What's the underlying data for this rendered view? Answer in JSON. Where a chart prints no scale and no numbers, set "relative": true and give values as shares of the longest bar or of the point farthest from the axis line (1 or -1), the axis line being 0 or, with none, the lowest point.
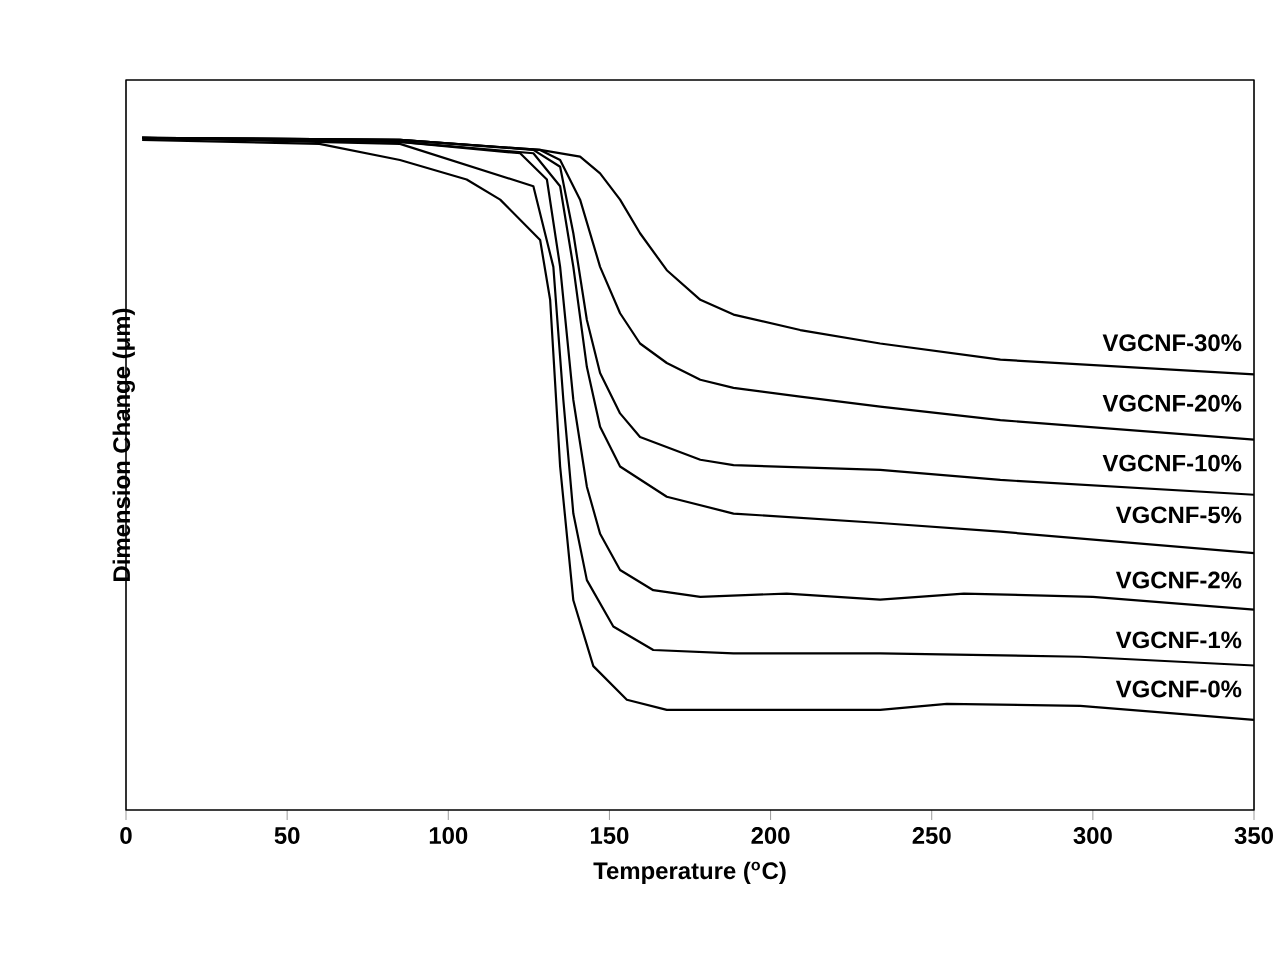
{
  "chart_data": {
    "type": "line",
    "xlabel": "Temperature ($^{o}$C)",
    "ylabel": "Dimension Change (μm)",
    "relative": true,
    "xlim": [
      0,
      350
    ],
    "xticks": [
      0,
      50,
      100,
      150,
      200,
      250,
      300,
      350
    ],
    "marker": "none",
    "line_style": "solid",
    "series": [
      {
        "name": "VGCNF-30%",
        "color": "#000000",
        "x": [
          5,
          85,
          128.5,
          140.9,
          147.1,
          153.3,
          159.5,
          167.8,
          178.2,
          188.5,
          209.2,
          234,
          271.3,
          350
        ],
        "values": [
          1.0,
          0.997,
          0.982,
          0.972,
          0.947,
          0.908,
          0.858,
          0.803,
          0.759,
          0.737,
          0.714,
          0.694,
          0.67,
          0.648
        ]
      },
      {
        "name": "VGCNF-20%",
        "color": "#000000",
        "x": [
          5,
          85,
          128.5,
          134.7,
          140.9,
          147.1,
          153.3,
          159.5,
          167.8,
          178.2,
          188.5,
          209.2,
          234,
          271.3,
          350
        ],
        "values": [
          1.0,
          0.997,
          0.982,
          0.967,
          0.908,
          0.808,
          0.739,
          0.694,
          0.665,
          0.64,
          0.628,
          0.615,
          0.6,
          0.58,
          0.551
        ]
      },
      {
        "name": "VGCNF-10%",
        "color": "#000000",
        "x": [
          5,
          85,
          126.4,
          134.7,
          138.8,
          143.0,
          147.1,
          153.3,
          159.5,
          178.2,
          188.5,
          234,
          271.3,
          350
        ],
        "values": [
          1.0,
          0.997,
          0.982,
          0.957,
          0.858,
          0.729,
          0.65,
          0.59,
          0.555,
          0.521,
          0.513,
          0.506,
          0.491,
          0.469
        ]
      },
      {
        "name": "VGCNF-5%",
        "color": "#000000",
        "x": [
          5,
          85,
          126.4,
          134.7,
          138.8,
          143.0,
          147.1,
          153.3,
          167.8,
          188.5,
          234,
          271.3,
          350
        ],
        "values": [
          1.0,
          0.994,
          0.977,
          0.928,
          0.808,
          0.659,
          0.57,
          0.511,
          0.466,
          0.441,
          0.427,
          0.414,
          0.382
        ]
      },
      {
        "name": "VGCNF-2%",
        "color": "#000000",
        "x": [
          5,
          85,
          122.3,
          130.6,
          134.7,
          138.8,
          143.0,
          147.1,
          153.3,
          163.6,
          178.2,
          205.0,
          234,
          260,
          300,
          350
        ],
        "values": [
          1.0,
          0.994,
          0.977,
          0.938,
          0.808,
          0.61,
          0.481,
          0.411,
          0.357,
          0.327,
          0.317,
          0.322,
          0.313,
          0.322,
          0.317,
          0.298
        ]
      },
      {
        "name": "VGCNF-1%",
        "color": "#000000",
        "x": [
          5,
          85,
          126.4,
          132.6,
          135.7,
          138.8,
          143.0,
          151.2,
          163.6,
          188.5,
          234,
          296.1,
          350
        ],
        "values": [
          1.0,
          0.991,
          0.928,
          0.808,
          0.61,
          0.441,
          0.342,
          0.273,
          0.238,
          0.233,
          0.233,
          0.228,
          0.215
        ]
      },
      {
        "name": "VGCNF-0%",
        "color": "#000000",
        "x": [
          5,
          60,
          85,
          105.7,
          116.1,
          128.5,
          131.6,
          134.7,
          138.8,
          145.0,
          155.4,
          167.8,
          188.5,
          234,
          254.7,
          296.1,
          350
        ],
        "values": [
          0.997,
          0.991,
          0.967,
          0.938,
          0.908,
          0.848,
          0.759,
          0.511,
          0.312,
          0.214,
          0.164,
          0.149,
          0.149,
          0.149,
          0.158,
          0.155,
          0.134
        ]
      }
    ]
  }
}
